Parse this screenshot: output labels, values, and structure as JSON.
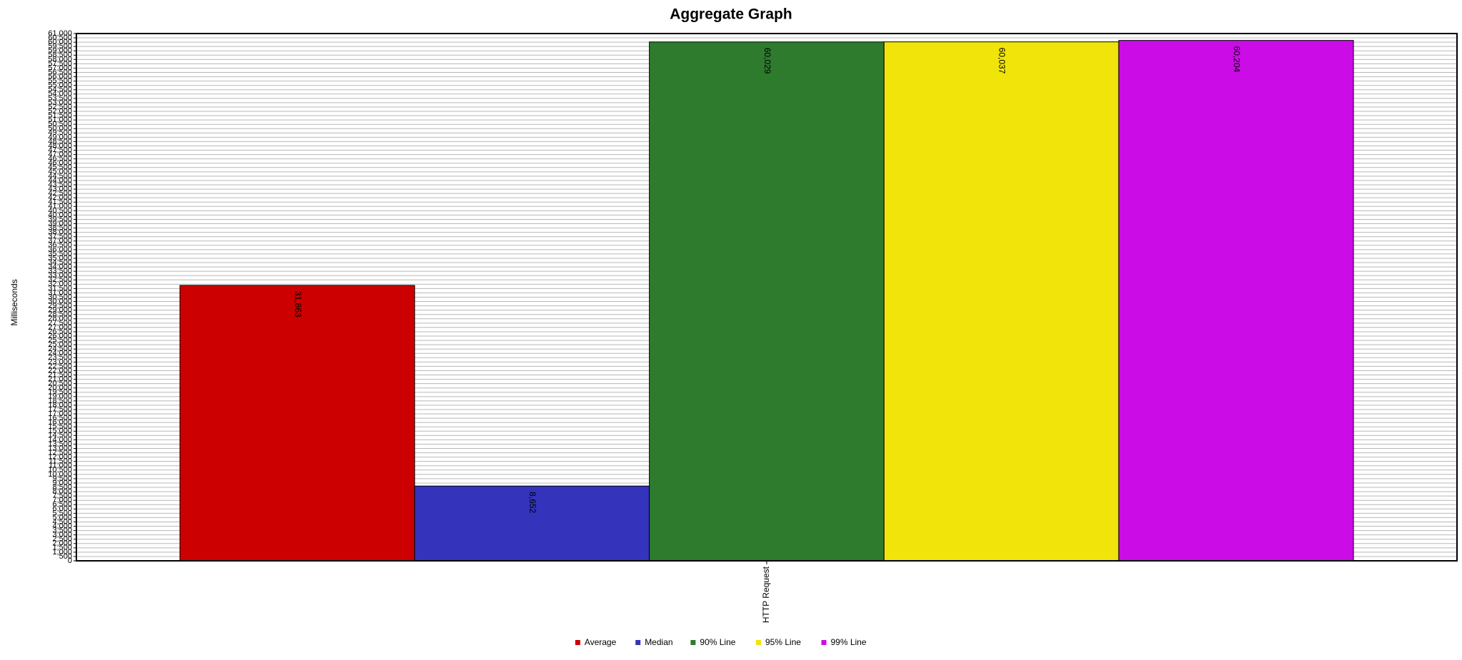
{
  "chart_data": {
    "type": "bar",
    "title": "Aggregate Graph",
    "y_label": "Milliseconds",
    "categories": [
      "HTTP Request"
    ],
    "series": [
      {
        "name": "Average",
        "color": "#cc0000",
        "values": [
          31863
        ],
        "value_labels": [
          "31,863"
        ]
      },
      {
        "name": "Median",
        "color": "#3333bb",
        "values": [
          8652
        ],
        "value_labels": [
          "8,652"
        ]
      },
      {
        "name": "90% Line",
        "color": "#2e7b2e",
        "values": [
          60029
        ],
        "value_labels": [
          "60,029"
        ]
      },
      {
        "name": "95% Line",
        "color": "#f0e40a",
        "values": [
          60037
        ],
        "value_labels": [
          "60,037"
        ]
      },
      {
        "name": "99% Line",
        "color": "#cb0ce6",
        "values": [
          60204
        ],
        "value_labels": [
          "60,204"
        ]
      }
    ],
    "ylim": [
      0,
      61000
    ],
    "yticks": [
      0,
      500,
      {
        "value": 1000,
        "label": "1,000"
      },
      {
        "value": 1500,
        "label": "1,500"
      },
      {
        "value": 2000,
        "label": "2,000"
      },
      {
        "value": 2500,
        "label": "2,500"
      },
      {
        "value": 3000,
        "label": "3,000"
      },
      {
        "value": 3500,
        "label": "3,500"
      },
      {
        "value": 4000,
        "label": "4,000"
      },
      {
        "value": 4500,
        "label": "4,500"
      },
      {
        "value": 5000,
        "label": "5,000"
      },
      {
        "value": 5500,
        "label": "5,500"
      },
      {
        "value": 6000,
        "label": "6,000"
      },
      {
        "value": 6500,
        "label": "6,500"
      },
      {
        "value": 7000,
        "label": "7,000"
      },
      {
        "value": 7500,
        "label": "7,500"
      },
      {
        "value": 8000,
        "label": "8,000"
      },
      {
        "value": 8500,
        "label": "8,500"
      },
      {
        "value": 9000,
        "label": "9,000"
      },
      {
        "value": 9500,
        "label": "9,500"
      },
      {
        "value": 10000,
        "label": "10,000"
      },
      {
        "value": 10500,
        "label": "10,500"
      },
      {
        "value": 11000,
        "label": "11,000"
      },
      {
        "value": 11500,
        "label": "11,500"
      },
      {
        "value": 12000,
        "label": "12,000"
      },
      {
        "value": 12500,
        "label": "12,500"
      },
      {
        "value": 13000,
        "label": "13,000"
      },
      {
        "value": 13500,
        "label": "13,500"
      },
      {
        "value": 14000,
        "label": "14,000"
      },
      {
        "value": 14500,
        "label": "14,500"
      },
      {
        "value": 15000,
        "label": "15,000"
      },
      {
        "value": 15500,
        "label": "15,500"
      },
      {
        "value": 16000,
        "label": "16,000"
      },
      {
        "value": 16500,
        "label": "16,500"
      },
      {
        "value": 17000,
        "label": "17,000"
      },
      {
        "value": 17500,
        "label": "17,500"
      },
      {
        "value": 18000,
        "label": "18,000"
      },
      {
        "value": 18500,
        "label": "18,500"
      },
      {
        "value": 19000,
        "label": "19,000"
      },
      {
        "value": 19500,
        "label": "19,500"
      },
      {
        "value": 20000,
        "label": "20,000"
      },
      {
        "value": 20500,
        "label": "20,500"
      },
      {
        "value": 21000,
        "label": "21,000"
      },
      {
        "value": 21500,
        "label": "21,500"
      },
      {
        "value": 22000,
        "label": "22,000"
      },
      {
        "value": 22500,
        "label": "22,500"
      },
      {
        "value": 23000,
        "label": "23,000"
      },
      {
        "value": 23500,
        "label": "23,500"
      },
      {
        "value": 24000,
        "label": "24,000"
      },
      {
        "value": 24500,
        "label": "24,500"
      },
      {
        "value": 25000,
        "label": "25,000"
      },
      {
        "value": 25500,
        "label": "25,500"
      },
      {
        "value": 26000,
        "label": "26,000"
      },
      {
        "value": 26500,
        "label": "26,500"
      },
      {
        "value": 27000,
        "label": "27,000"
      },
      {
        "value": 27500,
        "label": "27,500"
      },
      {
        "value": 28000,
        "label": "28,000"
      },
      {
        "value": 28500,
        "label": "28,500"
      },
      {
        "value": 29000,
        "label": "29,000"
      },
      {
        "value": 29500,
        "label": "29,500"
      },
      {
        "value": 30000,
        "label": "30,000"
      },
      {
        "value": 30500,
        "label": "30,500"
      },
      {
        "value": 31000,
        "label": "31,000"
      },
      {
        "value": 31500,
        "label": "31,500"
      },
      {
        "value": 32000,
        "label": "32,000"
      },
      {
        "value": 32500,
        "label": "32,500"
      },
      {
        "value": 33000,
        "label": "33,000"
      },
      {
        "value": 33500,
        "label": "33,500"
      },
      {
        "value": 34000,
        "label": "34,000"
      },
      {
        "value": 34500,
        "label": "34,500"
      },
      {
        "value": 35000,
        "label": "35,000"
      },
      {
        "value": 35500,
        "label": "35,500"
      },
      {
        "value": 36000,
        "label": "36,000"
      },
      {
        "value": 36500,
        "label": "36,500"
      },
      {
        "value": 37000,
        "label": "37,000"
      },
      {
        "value": 37500,
        "label": "37,500"
      },
      {
        "value": 38000,
        "label": "38,000"
      },
      {
        "value": 38500,
        "label": "38,500"
      },
      {
        "value": 39000,
        "label": "39,000"
      },
      {
        "value": 39500,
        "label": "39,500"
      },
      {
        "value": 40000,
        "label": "40,000"
      },
      {
        "value": 40500,
        "label": "40,500"
      },
      {
        "value": 41000,
        "label": "41,000"
      },
      {
        "value": 41500,
        "label": "41,500"
      },
      {
        "value": 42000,
        "label": "42,000"
      },
      {
        "value": 42500,
        "label": "42,500"
      },
      {
        "value": 43000,
        "label": "43,000"
      },
      {
        "value": 43500,
        "label": "43,500"
      },
      {
        "value": 44000,
        "label": "44,000"
      },
      {
        "value": 44500,
        "label": "44,500"
      },
      {
        "value": 45000,
        "label": "45,000"
      },
      {
        "value": 45500,
        "label": "45,500"
      },
      {
        "value": 46000,
        "label": "46,000"
      },
      {
        "value": 46500,
        "label": "46,500"
      },
      {
        "value": 47000,
        "label": "47,000"
      },
      {
        "value": 47500,
        "label": "47,500"
      },
      {
        "value": 48000,
        "label": "48,000"
      },
      {
        "value": 48500,
        "label": "48,500"
      },
      {
        "value": 49000,
        "label": "49,000"
      },
      {
        "value": 49500,
        "label": "49,500"
      },
      {
        "value": 50000,
        "label": "50,000"
      },
      {
        "value": 50500,
        "label": "50,500"
      },
      {
        "value": 51000,
        "label": "51,000"
      },
      {
        "value": 51500,
        "label": "51,500"
      },
      {
        "value": 52000,
        "label": "52,000"
      },
      {
        "value": 52500,
        "label": "52,500"
      },
      {
        "value": 53000,
        "label": "53,000"
      },
      {
        "value": 53500,
        "label": "53,500"
      },
      {
        "value": 54000,
        "label": "54,000"
      },
      {
        "value": 54500,
        "label": "54,500"
      },
      {
        "value": 55000,
        "label": "55,000"
      },
      {
        "value": 55500,
        "label": "55,500"
      },
      {
        "value": 56000,
        "label": "56,000"
      },
      {
        "value": 56500,
        "label": "56,500"
      },
      {
        "value": 57000,
        "label": "57,000"
      },
      {
        "value": 57500,
        "label": "57,500"
      },
      {
        "value": 58000,
        "label": "58,000"
      },
      {
        "value": 58500,
        "label": "58,500"
      },
      {
        "value": 59000,
        "label": "59,000"
      },
      {
        "value": 59500,
        "label": "59,500"
      },
      {
        "value": 60000,
        "label": "60,000"
      },
      {
        "value": 60500,
        "label": "60,500"
      },
      {
        "value": 61000,
        "label": "61,000"
      }
    ],
    "grid": true
  }
}
